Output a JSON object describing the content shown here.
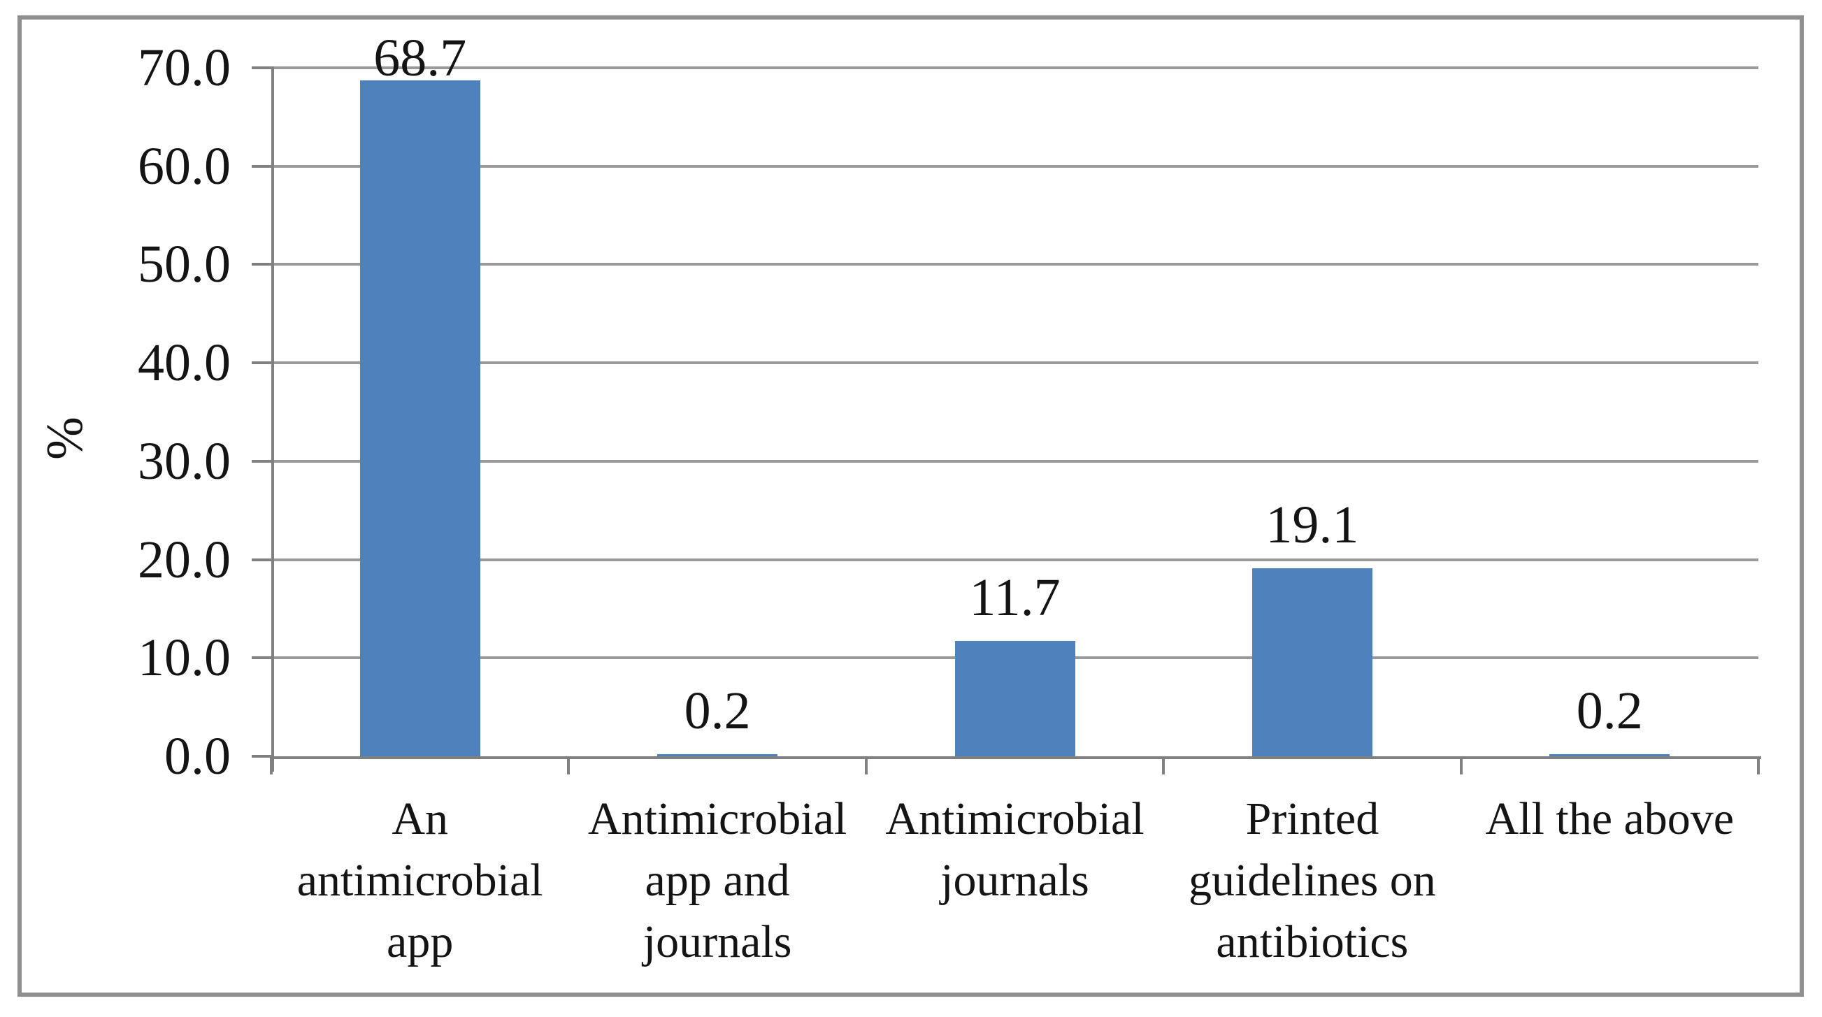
{
  "chart_data": {
    "type": "bar",
    "title": "",
    "xlabel": "",
    "ylabel": "%",
    "categories": [
      "An antimicrobial app",
      "Antimicrobial app and journals",
      "Antimicrobial journals",
      "Printed guidelines on antibiotics",
      "All the above"
    ],
    "values": [
      68.7,
      0.2,
      11.7,
      19.1,
      0.2
    ],
    "data_labels": [
      "68.7",
      "0.2",
      "11.7",
      "19.1",
      "0.2"
    ],
    "yticks": [
      "70.0",
      "60.0",
      "50.0",
      "40.0",
      "30.0",
      "20.0",
      "10.0",
      "0.0"
    ],
    "ylim": [
      0,
      70
    ],
    "ytick_step": 10,
    "grid": true,
    "legend": null,
    "colors": {
      "bar": "#4f81bd",
      "gridline": "#9a9a9a",
      "axis": "#808080",
      "frame_border": "#8f8f8f",
      "text": "#141414",
      "background": "#ffffff"
    }
  }
}
